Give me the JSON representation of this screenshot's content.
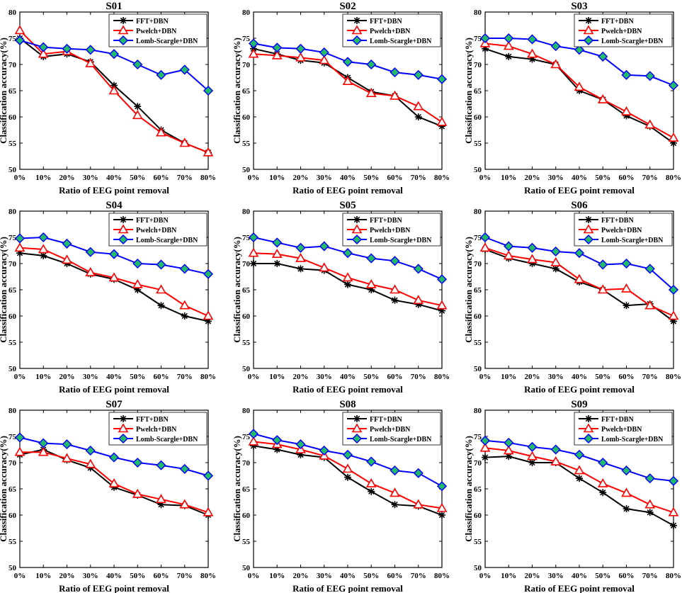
{
  "chart_data": [
    {
      "type": "line",
      "title": "S01",
      "xlabel": "Ratio of EEG point removal",
      "ylabel": "Classification accuracy(%)",
      "categories": [
        "0%",
        "10%",
        "20%",
        "30%",
        "40%",
        "50%",
        "60%",
        "70%",
        "80%"
      ],
      "ylim": [
        50,
        80
      ],
      "yticks": [
        50,
        55,
        60,
        65,
        70,
        75,
        80
      ],
      "legend_position": "top-right",
      "series": [
        {
          "name": "FFT+DBN",
          "values": [
            75,
            71.5,
            72,
            70.5,
            66,
            62,
            57.5,
            55,
            53.2
          ]
        },
        {
          "name": "Pwelch+DBN",
          "values": [
            76.5,
            72,
            72.5,
            70.2,
            65,
            60.3,
            57,
            55,
            53.2
          ]
        },
        {
          "name": "Lomb-Scargle+DBN",
          "values": [
            74.6,
            73.3,
            73,
            72.8,
            72,
            70,
            68,
            69,
            65
          ]
        }
      ]
    },
    {
      "type": "line",
      "title": "S02",
      "xlabel": "Ratio of EEG point removal",
      "ylabel": "Classification accuracy(%)",
      "categories": [
        "0%",
        "10%",
        "20%",
        "30%",
        "40%",
        "50%",
        "60%",
        "70%",
        "80%"
      ],
      "ylim": [
        50,
        80
      ],
      "yticks": [
        50,
        55,
        60,
        65,
        70,
        75,
        80
      ],
      "legend_position": "top-right",
      "series": [
        {
          "name": "FFT+DBN",
          "values": [
            73,
            72,
            70.8,
            70.3,
            67.5,
            64.8,
            64,
            60,
            58.2
          ]
        },
        {
          "name": "Pwelch+DBN",
          "values": [
            72,
            71.7,
            71.3,
            70.8,
            66.8,
            64.5,
            64,
            62,
            59
          ]
        },
        {
          "name": "Lomb-Scargle+DBN",
          "values": [
            74,
            73.2,
            73,
            72.3,
            70.5,
            70,
            68.5,
            68,
            67.2
          ]
        }
      ]
    },
    {
      "type": "line",
      "title": "S03",
      "xlabel": "Ratio of EEG point removal",
      "ylabel": "Classification accuracy(%)",
      "categories": [
        "0%",
        "10%",
        "20%",
        "30%",
        "40%",
        "50%",
        "60%",
        "70%",
        "80%"
      ],
      "ylim": [
        50,
        80
      ],
      "yticks": [
        50,
        55,
        60,
        65,
        70,
        75,
        80
      ],
      "legend_position": "top-right",
      "series": [
        {
          "name": "FFT+DBN",
          "values": [
            73,
            71.5,
            71,
            70,
            65,
            63.3,
            60.2,
            58.2,
            55
          ]
        },
        {
          "name": "Pwelch+DBN",
          "values": [
            74,
            73.5,
            72,
            70,
            65.7,
            63.3,
            61,
            58.5,
            56
          ]
        },
        {
          "name": "Lomb-Scargle+DBN",
          "values": [
            75,
            75,
            74.8,
            73.5,
            72.8,
            71.5,
            68,
            67.8,
            66
          ]
        }
      ]
    },
    {
      "type": "line",
      "title": "S04",
      "xlabel": "Ratio of EEG point removal",
      "ylabel": "Classification accuracy(%)",
      "categories": [
        "0%",
        "10%",
        "20%",
        "30%",
        "40%",
        "50%",
        "60%",
        "70%",
        "80%"
      ],
      "ylim": [
        50,
        80
      ],
      "yticks": [
        50,
        55,
        60,
        65,
        70,
        75,
        80
      ],
      "legend_position": "top-right",
      "series": [
        {
          "name": "FFT+DBN",
          "values": [
            72,
            71.5,
            70,
            68,
            67,
            65,
            62,
            60,
            59
          ]
        },
        {
          "name": "Pwelch+DBN",
          "values": [
            73,
            72.7,
            70.7,
            68.3,
            67.3,
            66,
            65,
            62,
            60
          ]
        },
        {
          "name": "Lomb-Scargle+DBN",
          "values": [
            74.8,
            75,
            73.8,
            72.2,
            71.8,
            70,
            69.8,
            69,
            68
          ]
        }
      ]
    },
    {
      "type": "line",
      "title": "S05",
      "xlabel": "Ratio of EEG point removal",
      "ylabel": "Classification accuracy(%)",
      "categories": [
        "0%",
        "10%",
        "20%",
        "30%",
        "40%",
        "50%",
        "60%",
        "70%",
        "80%"
      ],
      "ylim": [
        50,
        80
      ],
      "yticks": [
        50,
        55,
        60,
        65,
        70,
        75,
        80
      ],
      "legend_position": "top-right",
      "series": [
        {
          "name": "FFT+DBN",
          "values": [
            70,
            70,
            69,
            68.7,
            66,
            65,
            63,
            62.2,
            61
          ]
        },
        {
          "name": "Pwelch+DBN",
          "values": [
            72,
            71.8,
            71,
            69.2,
            67.3,
            66,
            65,
            63,
            62
          ]
        },
        {
          "name": "Lomb-Scargle+DBN",
          "values": [
            75,
            74,
            73,
            73.3,
            72,
            71,
            70.5,
            69,
            67
          ]
        }
      ]
    },
    {
      "type": "line",
      "title": "S06",
      "xlabel": "Ratio of EEG point removal",
      "ylabel": "Classification accuracy(%)",
      "categories": [
        "0%",
        "10%",
        "20%",
        "30%",
        "40%",
        "50%",
        "60%",
        "70%",
        "80%"
      ],
      "ylim": [
        50,
        80
      ],
      "yticks": [
        50,
        55,
        60,
        65,
        70,
        75,
        80
      ],
      "legend_position": "top-right",
      "series": [
        {
          "name": "FFT+DBN",
          "values": [
            72.7,
            71,
            70,
            69,
            66.5,
            65,
            62,
            62.3,
            59
          ]
        },
        {
          "name": "Pwelch+DBN",
          "values": [
            73,
            71.5,
            70.8,
            70.2,
            67,
            65,
            65.2,
            62,
            60
          ]
        },
        {
          "name": "Lomb-Scargle+DBN",
          "values": [
            75,
            73.3,
            73,
            72.3,
            72,
            69.8,
            70,
            69,
            65
          ]
        }
      ]
    },
    {
      "type": "line",
      "title": "S07",
      "xlabel": "Ratio of EEG point removal",
      "ylabel": "Classification accuracy(%)",
      "categories": [
        "0%",
        "10%",
        "20%",
        "30%",
        "40%",
        "50%",
        "60%",
        "70%",
        "80%"
      ],
      "ylim": [
        50,
        80
      ],
      "yticks": [
        50,
        55,
        60,
        65,
        70,
        75,
        80
      ],
      "legend_position": "top-right",
      "series": [
        {
          "name": "FFT+DBN",
          "values": [
            71.5,
            72.5,
            70.5,
            69,
            65.3,
            63.8,
            62,
            61.8,
            60
          ]
        },
        {
          "name": "Pwelch+DBN",
          "values": [
            72,
            72,
            70.8,
            69.7,
            66,
            64,
            63,
            62,
            60.5
          ]
        },
        {
          "name": "Lomb-Scargle+DBN",
          "values": [
            74.8,
            73.7,
            73.5,
            72.3,
            71,
            70,
            69.5,
            68.8,
            67.5
          ]
        }
      ]
    },
    {
      "type": "line",
      "title": "S08",
      "xlabel": "Ratio of EEG point removal",
      "ylabel": "Classification accuracy(%)",
      "categories": [
        "0%",
        "10%",
        "20%",
        "30%",
        "40%",
        "50%",
        "60%",
        "70%",
        "80%"
      ],
      "ylim": [
        50,
        80
      ],
      "yticks": [
        50,
        55,
        60,
        65,
        70,
        75,
        80
      ],
      "legend_position": "top-right",
      "series": [
        {
          "name": "FFT+DBN",
          "values": [
            73.2,
            72.5,
            71.5,
            71,
            67.2,
            64.5,
            62,
            61.7,
            60
          ]
        },
        {
          "name": "Pwelch+DBN",
          "values": [
            74,
            73.5,
            72.5,
            71.3,
            68.8,
            66,
            64.2,
            62,
            61.3
          ]
        },
        {
          "name": "Lomb-Scargle+DBN",
          "values": [
            75.5,
            74.3,
            73.5,
            72.3,
            71.5,
            70.2,
            68.5,
            68,
            65.5
          ]
        }
      ]
    },
    {
      "type": "line",
      "title": "S09",
      "xlabel": "Ratio of EEG point removal",
      "ylabel": "Classification accuracy(%)",
      "categories": [
        "0%",
        "10%",
        "20%",
        "30%",
        "40%",
        "50%",
        "60%",
        "70%",
        "80%"
      ],
      "ylim": [
        50,
        80
      ],
      "yticks": [
        50,
        55,
        60,
        65,
        70,
        75,
        80
      ],
      "legend_position": "top-right",
      "series": [
        {
          "name": "FFT+DBN",
          "values": [
            71,
            71.2,
            70,
            70,
            67,
            64.3,
            61.2,
            60.5,
            58
          ]
        },
        {
          "name": "Pwelch+DBN",
          "values": [
            72.8,
            72.3,
            71.2,
            70.2,
            68.5,
            66,
            64.2,
            62,
            60.5
          ]
        },
        {
          "name": "Lomb-Scargle+DBN",
          "values": [
            74.2,
            73.8,
            73,
            72.5,
            71.5,
            70,
            68.5,
            67,
            66.5
          ]
        }
      ]
    }
  ],
  "series_styles": [
    {
      "color": "#000000",
      "marker": "asterisk"
    },
    {
      "color": "#ff0000",
      "marker": "triangle"
    },
    {
      "color": "#0000ff",
      "marker": "diamond",
      "fill": "#22bb66"
    }
  ]
}
